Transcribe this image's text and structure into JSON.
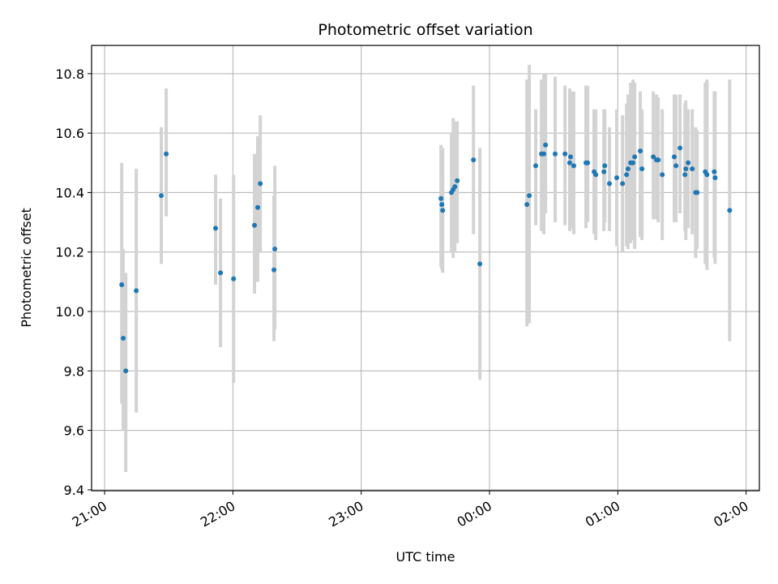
{
  "chart_data": {
    "type": "scatter",
    "title": "Photometric offset variation",
    "xlabel": "UTC time",
    "ylabel": "Photometric offset",
    "x_units": "minutes after 21:00 UTC",
    "xlim": [
      -6.1,
      306.2
    ],
    "ylim": [
      9.397,
      10.895
    ],
    "grid": true,
    "xticks": [
      {
        "value": 0,
        "label": "21:00"
      },
      {
        "value": 60,
        "label": "22:00"
      },
      {
        "value": 120,
        "label": "23:00"
      },
      {
        "value": 180,
        "label": "00:00"
      },
      {
        "value": 240,
        "label": "01:00"
      },
      {
        "value": 300,
        "label": "02:00"
      }
    ],
    "yticks": [
      {
        "value": 9.4,
        "label": "9.4"
      },
      {
        "value": 9.6,
        "label": "9.6"
      },
      {
        "value": 9.8,
        "label": "9.8"
      },
      {
        "value": 10.0,
        "label": "10.0"
      },
      {
        "value": 10.2,
        "label": "10.2"
      },
      {
        "value": 10.4,
        "label": "10.4"
      },
      {
        "value": 10.6,
        "label": "10.6"
      },
      {
        "value": 10.8,
        "label": "10.8"
      }
    ],
    "colors": {
      "point": "#1f77b4",
      "errorbar": "#d3d3d3",
      "grid": "#b0b0b0"
    },
    "points": [
      [
        8.0,
        10.09,
        9.69,
        10.5
      ],
      [
        8.7,
        9.91,
        9.6,
        10.21
      ],
      [
        9.9,
        9.8,
        9.46,
        10.13
      ],
      [
        14.8,
        10.07,
        9.66,
        10.48
      ],
      [
        26.5,
        10.39,
        10.16,
        10.62
      ],
      [
        28.8,
        10.53,
        10.32,
        10.75
      ],
      [
        51.9,
        10.28,
        10.09,
        10.46
      ],
      [
        54.2,
        10.13,
        9.88,
        10.38
      ],
      [
        60.3,
        10.11,
        9.76,
        10.46
      ],
      [
        70.1,
        10.29,
        10.06,
        10.53
      ],
      [
        71.6,
        10.35,
        10.1,
        10.59
      ],
      [
        72.8,
        10.43,
        10.2,
        10.66
      ],
      [
        79.2,
        10.14,
        9.9,
        10.39
      ],
      [
        79.6,
        10.21,
        9.94,
        10.49
      ],
      [
        157.3,
        10.38,
        10.15,
        10.56
      ],
      [
        157.7,
        10.36,
        10.14,
        10.55
      ],
      [
        158.1,
        10.34,
        10.13,
        10.55
      ],
      [
        162.2,
        10.4,
        10.2,
        10.6
      ],
      [
        163.0,
        10.41,
        10.18,
        10.65
      ],
      [
        163.8,
        10.42,
        10.2,
        10.64
      ],
      [
        164.9,
        10.44,
        10.23,
        10.64
      ],
      [
        172.5,
        10.51,
        10.26,
        10.76
      ],
      [
        175.5,
        10.16,
        9.77,
        10.55
      ],
      [
        197.5,
        10.36,
        9.95,
        10.78
      ],
      [
        198.6,
        10.39,
        9.96,
        10.83
      ],
      [
        201.6,
        10.49,
        10.29,
        10.68
      ],
      [
        204.3,
        10.53,
        10.27,
        10.78
      ],
      [
        205.4,
        10.53,
        10.26,
        10.8
      ],
      [
        206.2,
        10.56,
        10.33,
        10.8
      ],
      [
        210.7,
        10.53,
        10.3,
        10.79
      ],
      [
        215.3,
        10.53,
        10.29,
        10.76
      ],
      [
        217.5,
        10.5,
        10.27,
        10.75
      ],
      [
        217.9,
        10.52,
        10.28,
        10.74
      ],
      [
        219.4,
        10.49,
        10.26,
        10.74
      ],
      [
        225.1,
        10.5,
        10.28,
        10.76
      ],
      [
        225.9,
        10.5,
        10.3,
        10.76
      ],
      [
        228.9,
        10.47,
        10.26,
        10.68
      ],
      [
        229.7,
        10.46,
        10.24,
        10.68
      ],
      [
        233.5,
        10.47,
        10.27,
        10.68
      ],
      [
        233.9,
        10.49,
        10.3,
        10.68
      ],
      [
        236.1,
        10.43,
        10.27,
        10.62
      ],
      [
        239.5,
        10.45,
        10.22,
        10.68
      ],
      [
        242.2,
        10.43,
        10.2,
        10.66
      ],
      [
        244.1,
        10.46,
        10.22,
        10.7
      ],
      [
        244.8,
        10.48,
        10.21,
        10.73
      ],
      [
        246.0,
        10.5,
        10.23,
        10.77
      ],
      [
        247.1,
        10.5,
        10.24,
        10.78
      ],
      [
        247.9,
        10.52,
        10.21,
        10.77
      ],
      [
        250.5,
        10.54,
        10.25,
        10.74
      ],
      [
        251.3,
        10.48,
        10.24,
        10.68
      ],
      [
        256.6,
        10.52,
        10.31,
        10.74
      ],
      [
        258.1,
        10.51,
        10.31,
        10.73
      ],
      [
        258.9,
        10.51,
        10.3,
        10.72
      ],
      [
        260.8,
        10.46,
        10.24,
        10.68
      ],
      [
        266.4,
        10.52,
        10.3,
        10.73
      ],
      [
        267.2,
        10.49,
        10.3,
        10.73
      ],
      [
        269.1,
        10.55,
        10.33,
        10.73
      ],
      [
        271.4,
        10.46,
        10.27,
        10.7
      ],
      [
        271.8,
        10.48,
        10.24,
        10.71
      ],
      [
        272.9,
        10.5,
        10.28,
        10.68
      ],
      [
        274.8,
        10.48,
        10.26,
        10.68
      ],
      [
        276.4,
        10.4,
        10.18,
        10.62
      ],
      [
        277.1,
        10.4,
        10.21,
        10.61
      ],
      [
        280.9,
        10.47,
        10.16,
        10.77
      ],
      [
        281.7,
        10.46,
        10.14,
        10.78
      ],
      [
        285.1,
        10.47,
        10.18,
        10.74
      ],
      [
        285.5,
        10.45,
        10.16,
        10.74
      ],
      [
        292.3,
        10.34,
        9.9,
        10.78
      ]
    ]
  }
}
